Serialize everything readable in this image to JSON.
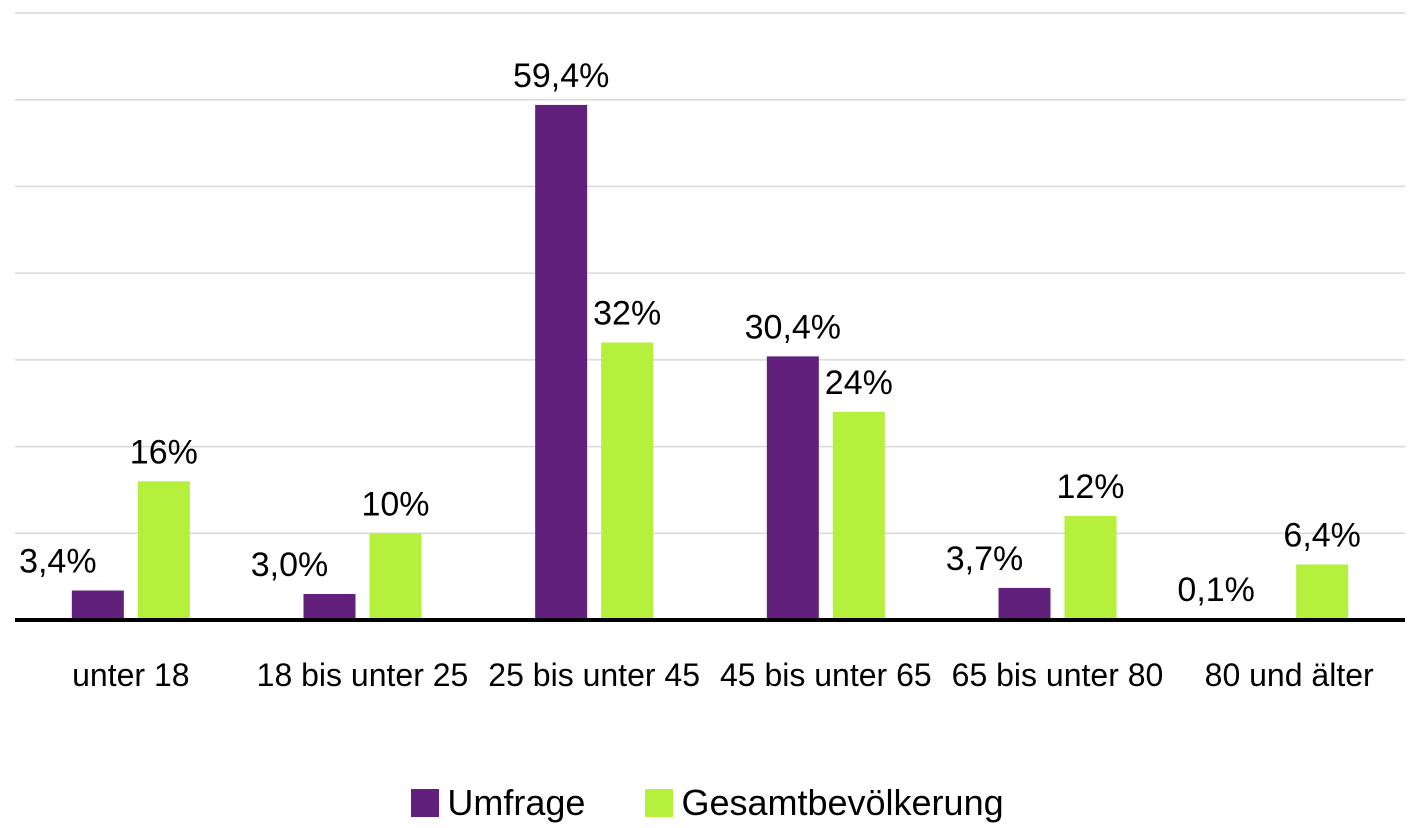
{
  "chart_data": {
    "type": "bar",
    "categories": [
      "unter 18",
      "18 bis unter 25",
      "25 bis unter 45",
      "45 bis unter 65",
      "65 bis unter 80",
      "80 und älter"
    ],
    "series": [
      {
        "name": "Umfrage",
        "color": "#61207b",
        "values": [
          3.4,
          3.0,
          59.4,
          30.4,
          3.7,
          0.1
        ],
        "value_labels": [
          "3,4%",
          "3,0%",
          "59,4%",
          "30,4%",
          "3,7%",
          "0,1%"
        ]
      },
      {
        "name": "Gesamtbevölkerung",
        "color": "#b5f03c",
        "values": [
          16,
          10,
          32,
          24,
          12,
          6.4
        ],
        "value_labels": [
          "16%",
          "10%",
          "32%",
          "24%",
          "12%",
          "6,4%"
        ]
      }
    ],
    "ylim": [
      0,
      70
    ],
    "yticks": [
      0,
      10,
      20,
      30,
      40,
      50,
      60,
      70
    ],
    "grid": true,
    "legend": "bottom"
  }
}
